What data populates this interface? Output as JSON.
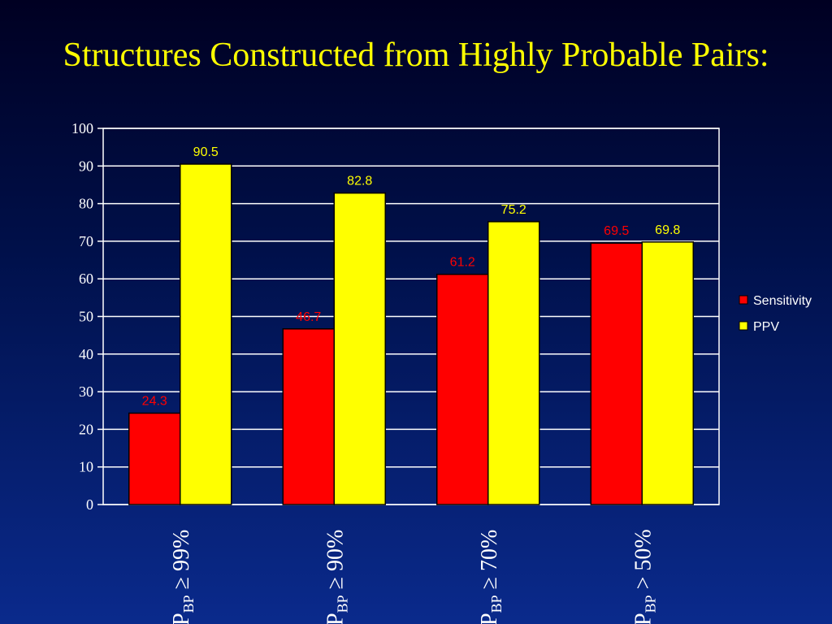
{
  "slide": {
    "title": "Structures Constructed from Highly Probable Pairs:"
  },
  "colors": {
    "sensitivity": "#ff0000",
    "ppv": "#ffff00",
    "bar_stroke": "#000000",
    "grid": "#ffffff",
    "axis": "#ffffff"
  },
  "chart_data": {
    "type": "bar",
    "categories": [
      {
        "main": "P",
        "sub": "BP",
        "rest": " ≥ 99%"
      },
      {
        "main": "P",
        "sub": "BP",
        "rest": " ≥ 90%"
      },
      {
        "main": "P",
        "sub": "BP",
        "rest": " ≥ 70%"
      },
      {
        "main": "P",
        "sub": "BP",
        "rest": " > 50%"
      }
    ],
    "series": [
      {
        "name": "Sensitivity",
        "values": [
          24.3,
          46.7,
          61.2,
          69.5
        ]
      },
      {
        "name": "PPV",
        "values": [
          90.5,
          82.8,
          75.2,
          69.8
        ]
      }
    ],
    "data_labels": [
      [
        "24.3",
        "46.7",
        "61.2",
        "69.5"
      ],
      [
        "90.5",
        "82.8",
        "75.2",
        "69.8"
      ]
    ],
    "yticks": [
      "0",
      "10",
      "20",
      "30",
      "40",
      "50",
      "60",
      "70",
      "80",
      "90",
      "100"
    ],
    "ylim": [
      0,
      100
    ],
    "grid": true,
    "legend": "right"
  }
}
